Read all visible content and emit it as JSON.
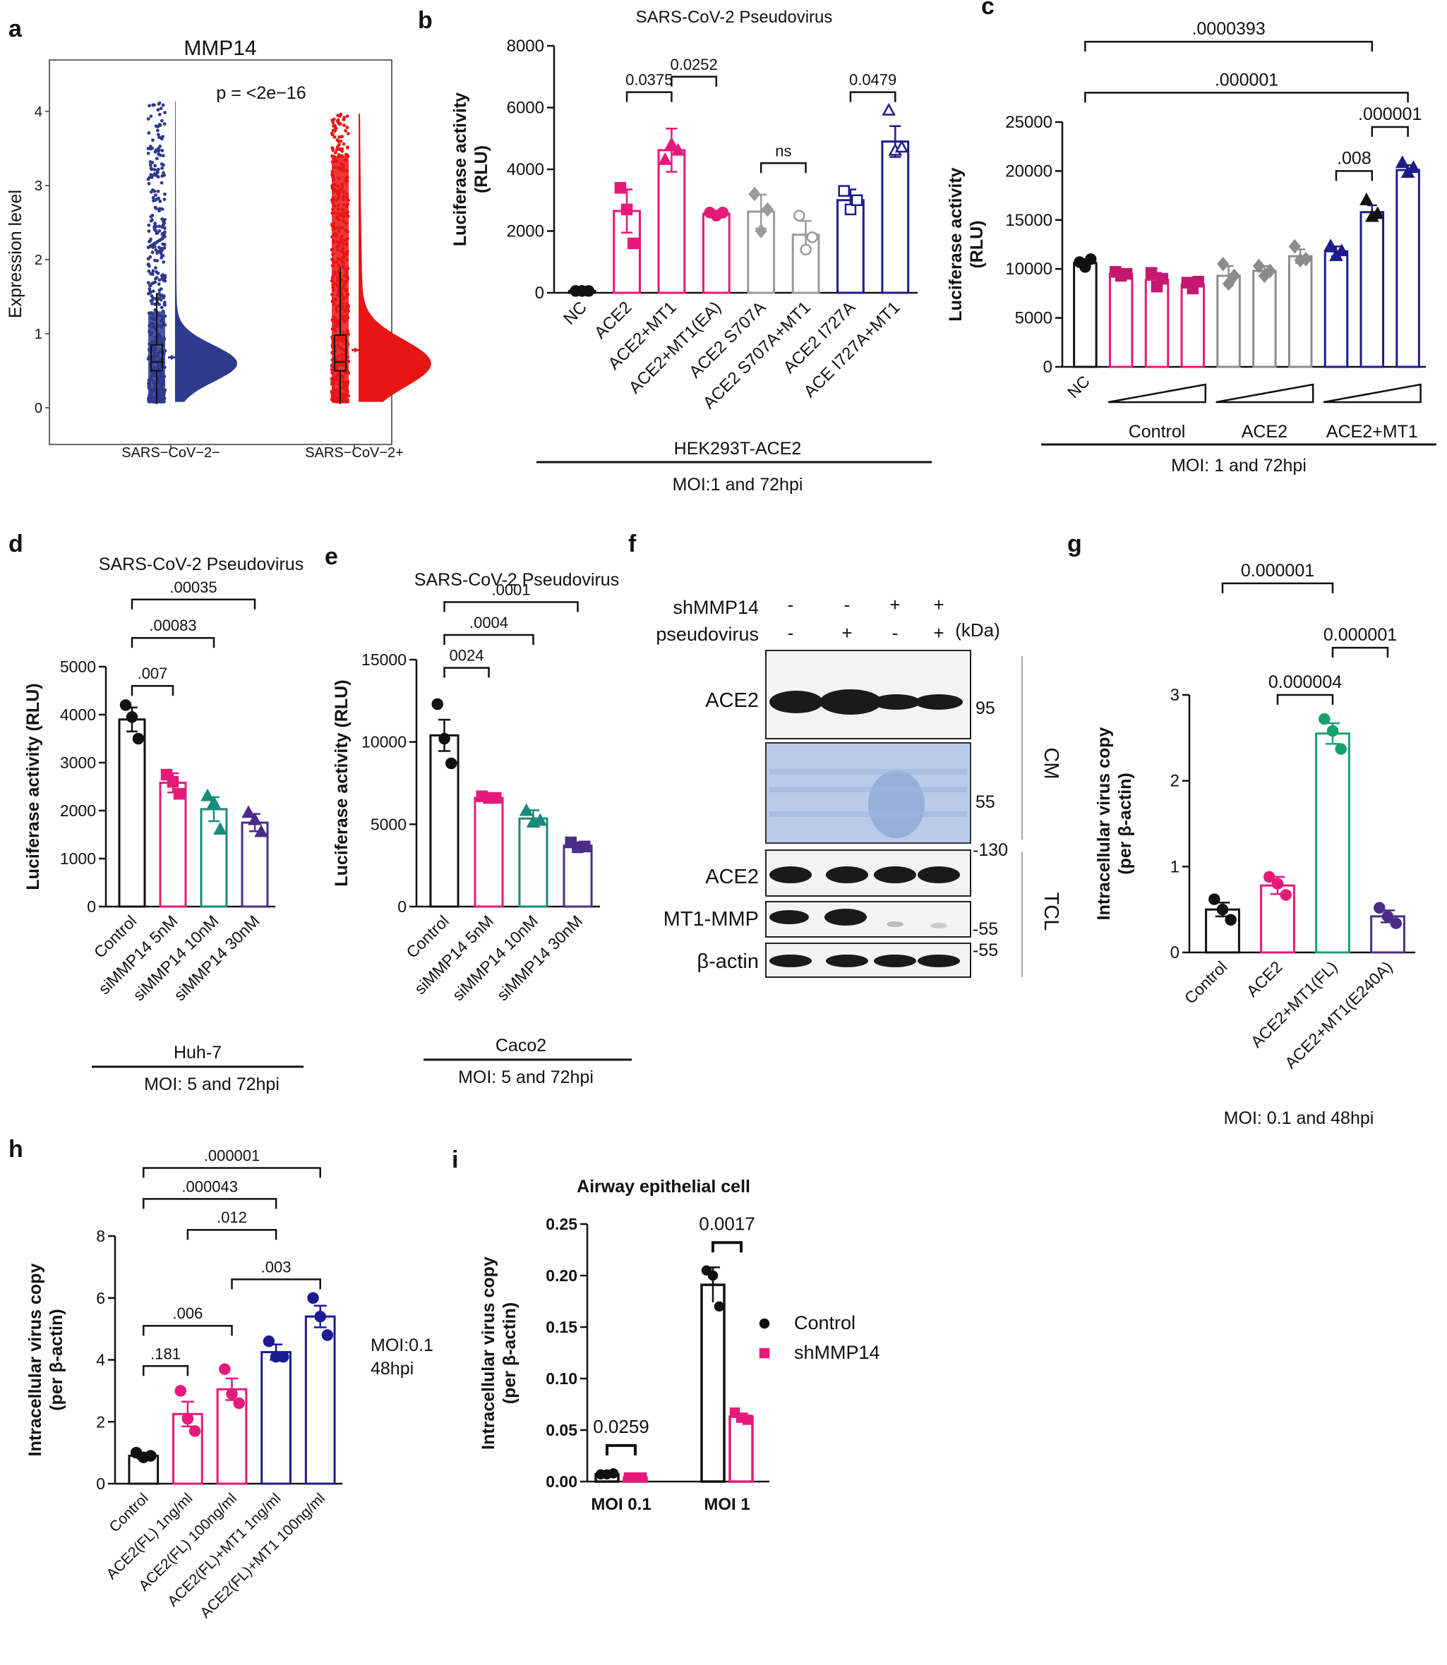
{
  "colors": {
    "black": "#111111",
    "pink": "#e6197a",
    "gray": "#9b9b9b",
    "navy": "#1c1c8e",
    "teal": "#1a8a7a",
    "purple": "#4b2d8a",
    "green": "#1aa06e",
    "blue_violin": "#2e3a8c",
    "red_violin": "#e81515"
  },
  "chart_data": [
    {
      "panel": "a",
      "type": "violin",
      "title": "MMP14",
      "annotation": "p = <2e−16",
      "ylabel": "Expression level",
      "ylim": [
        -0.05,
        4.3
      ],
      "yticks": [
        "0",
        "1",
        "2",
        "3",
        "4"
      ],
      "yticks_values": [
        0,
        1,
        2,
        3,
        4
      ],
      "categories": [
        "SARS−CoV−2−",
        "SARS−CoV−2+"
      ],
      "series_colors": [
        "#2e3a8c",
        "#e81515"
      ],
      "box": [
        {
          "whisker_low": 0.05,
          "q1": 0.5,
          "median": 0.62,
          "q3": 0.85,
          "whisker_high": 1.55,
          "mean": 0.68,
          "max": 4.15
        },
        {
          "whisker_low": 0.05,
          "q1": 0.5,
          "median": 0.62,
          "q3": 0.98,
          "whisker_high": 1.9,
          "mean": 0.78,
          "max": 3.98
        }
      ]
    },
    {
      "panel": "b",
      "type": "bar",
      "title": "SARS-CoV-2 Pseudovirus",
      "ylabel": "Luciferase activity (RLU)",
      "ylabel_lines": [
        "Luciferase activity",
        "(RLU)"
      ],
      "ylim": [
        0,
        8000
      ],
      "yticks": [
        "0",
        "2000",
        "4000",
        "6000",
        "8000"
      ],
      "yticks_values": [
        0,
        2000,
        4000,
        6000,
        8000
      ],
      "categories": [
        "NC",
        "ACE2",
        "ACE2+MT1",
        "ACE2+MT1(EA)",
        "ACE2 S707A",
        "ACE2 S707A+MT1",
        "ACE2 I727A",
        "ACE I727A+MT1"
      ],
      "values": [
        60,
        2650,
        4620,
        2560,
        2630,
        1880,
        3000,
        4900
      ],
      "errors": [
        30,
        700,
        700,
        100,
        550,
        450,
        350,
        500
      ],
      "points": [
        [
          60,
          60,
          60
        ],
        [
          3400,
          2700,
          1600
        ],
        [
          4300,
          4800,
          4600
        ],
        [
          2600,
          2500,
          2600
        ],
        [
          3200,
          2000,
          2700
        ],
        [
          2500,
          1400,
          1800
        ],
        [
          3300,
          2700,
          3000
        ],
        [
          5900,
          4600,
          4700
        ]
      ],
      "colors": [
        "#111111",
        "#e6197a",
        "#e6197a",
        "#e6197a",
        "#9b9b9b",
        "#9b9b9b",
        "#1c1c8e",
        "#1c1c8e"
      ],
      "markers": [
        "circle",
        "square",
        "triangle",
        "circle",
        "diamond",
        "circle",
        "square",
        "triangle"
      ],
      "filled": [
        true,
        true,
        true,
        true,
        true,
        false,
        false,
        false
      ],
      "comparisons": [
        {
          "a": 1,
          "b": 2,
          "label": "0.0375",
          "y": 6500
        },
        {
          "a": 2,
          "b": 3,
          "label": "0.0252",
          "y": 7000
        },
        {
          "a": 4,
          "b": 5,
          "label": "ns",
          "y": 4200
        },
        {
          "a": 6,
          "b": 7,
          "label": "0.0479",
          "y": 6500
        }
      ],
      "group_label": "HEK293T-ACE2",
      "footer": "MOI:1 and 72hpi"
    },
    {
      "panel": "c",
      "type": "bar",
      "ylabel": "Luciferase activity (RLU)",
      "ylabel_lines": [
        "Luciferase activity",
        "(RLU)"
      ],
      "ylim": [
        0,
        25000
      ],
      "yticks": [
        "0",
        "5000",
        "10000",
        "15000",
        "20000",
        "25000"
      ],
      "yticks_values": [
        0,
        5000,
        10000,
        15000,
        20000,
        25000
      ],
      "categories": [
        "NC",
        "",
        "",
        "",
        "",
        "",
        "",
        "",
        "",
        ""
      ],
      "values": [
        10600,
        9500,
        8900,
        8400,
        9300,
        9800,
        11300,
        11800,
        15800,
        20100
      ],
      "errors": [
        400,
        400,
        700,
        500,
        1000,
        500,
        700,
        500,
        700,
        500
      ],
      "points": [
        [
          10700,
          10200,
          11000
        ],
        [
          9700,
          9300,
          9500
        ],
        [
          9600,
          8200,
          9000
        ],
        [
          8600,
          8000,
          8700
        ],
        [
          10500,
          8500,
          9300
        ],
        [
          10300,
          9300,
          9800
        ],
        [
          12300,
          10900,
          11000
        ],
        [
          12300,
          11300,
          11800
        ],
        [
          17000,
          15300,
          15600
        ],
        [
          20800,
          19800,
          20300
        ]
      ],
      "colors": [
        "#111111",
        "#e6197a",
        "#e6197a",
        "#e6197a",
        "#8c8c8c",
        "#8c8c8c",
        "#8c8c8c",
        "#1c1c8e",
        "#1c1c8e",
        "#1c1c8e"
      ],
      "point_colors": [
        "#111111",
        "#c4186e",
        "#c4186e",
        "#c4186e",
        "#8c8c8c",
        "#8c8c8c",
        "#8c8c8c",
        "#1c1c8e",
        "#111111",
        "#1c1c8e"
      ],
      "markers": [
        "circle",
        "square",
        "square",
        "square",
        "diamond",
        "diamond",
        "diamond",
        "triangle",
        "triangle",
        "triangle"
      ],
      "filled": [
        true,
        true,
        true,
        true,
        true,
        true,
        true,
        true,
        true,
        true
      ],
      "comparisons": [
        {
          "a": 0,
          "b": 8,
          "label": ".0000393",
          "y": 33200
        },
        {
          "a": 0,
          "b": 9,
          "label": ".000001",
          "y": 28000
        },
        {
          "a": 8,
          "b": 9,
          "label": ".000001",
          "y": 24500
        },
        {
          "a": 7,
          "b": 8,
          "label": ".008",
          "y": 20000
        }
      ],
      "group_labels": [
        "Control",
        "ACE2",
        "ACE2+MT1"
      ],
      "footer": "MOI: 1 and 72hpi"
    },
    {
      "panel": "d",
      "type": "bar",
      "title": "SARS-CoV-2 Pseudovirus",
      "ylabel": "Luciferase activity (RLU)",
      "ylim": [
        0,
        5000
      ],
      "yticks": [
        "0",
        "1000",
        "2000",
        "3000",
        "4000",
        "5000"
      ],
      "yticks_values": [
        0,
        1000,
        2000,
        3000,
        4000,
        5000
      ],
      "categories": [
        "Control",
        "siMMP14 5nM",
        "siMMP14 10nM",
        "siMMP14 30nM"
      ],
      "values": [
        3900,
        2580,
        2030,
        1750
      ],
      "errors": [
        250,
        200,
        250,
        180
      ],
      "points": [
        [
          4200,
          3950,
          3500
        ],
        [
          2750,
          2600,
          2350
        ],
        [
          2300,
          2150,
          1600
        ],
        [
          1950,
          1800,
          1550
        ]
      ],
      "colors": [
        "#111111",
        "#e6197a",
        "#1a8a7a",
        "#4b2d8a"
      ],
      "markers": [
        "circle",
        "square",
        "triangle",
        "triangle"
      ],
      "filled": [
        true,
        true,
        true,
        true
      ],
      "comparisons": [
        {
          "a": 0,
          "b": 1,
          "label": ".007",
          "y": 4600
        },
        {
          "a": 0,
          "b": 2,
          "label": ".00083",
          "y": 5600
        },
        {
          "a": 0,
          "b": 3,
          "label": ".00035",
          "y": 6400
        }
      ],
      "group_label": "Huh-7",
      "footer": "MOI:   5 and 72hpi"
    },
    {
      "panel": "e",
      "type": "bar",
      "title": "SARS-CoV-2 Pseudovirus",
      "ylabel": "Luciferase activity (RLU)",
      "ylim": [
        0,
        15000
      ],
      "yticks": [
        "0",
        "5000",
        "10000",
        "15000"
      ],
      "yticks_values": [
        0,
        5000,
        10000,
        15000
      ],
      "categories": [
        "Control",
        "siMMP14 5nM",
        "siMMP14 10nM",
        "siMMP14 30nM"
      ],
      "values": [
        10400,
        6600,
        5350,
        3700
      ],
      "errors": [
        950,
        150,
        500,
        200
      ],
      "points": [
        [
          12300,
          10200,
          8700
        ],
        [
          6700,
          6600,
          6600
        ],
        [
          5800,
          5100,
          5200
        ],
        [
          3900,
          3600,
          3650
        ]
      ],
      "colors": [
        "#111111",
        "#e6197a",
        "#1a8a7a",
        "#4b2d8a"
      ],
      "markers": [
        "circle",
        "square",
        "triangle",
        "square"
      ],
      "filled": [
        true,
        true,
        true,
        true
      ],
      "comparisons": [
        {
          "a": 0,
          "b": 1,
          "label": "0024",
          "y": 14500
        },
        {
          "a": 0,
          "b": 2,
          "label": ".0004",
          "y": 16500
        },
        {
          "a": 0,
          "b": 3,
          "label": ".0001",
          "y": 18500
        }
      ],
      "group_label": "Caco2",
      "footer": "MOI: 5 and 72hpi"
    },
    {
      "panel": "g",
      "type": "bar",
      "ylabel": "Intracellular virus copy (per β-actin)",
      "ylabel_lines": [
        "Intracellular virus copy",
        "(per β-actin)"
      ],
      "ylim": [
        0,
        3
      ],
      "yticks": [
        "0",
        "1",
        "2",
        "3"
      ],
      "yticks_values": [
        0,
        1,
        2,
        3
      ],
      "categories": [
        "Control",
        "ACE2",
        "ACE2+MT1(FL)",
        "ACE2+MT1(E240A)"
      ],
      "values": [
        0.5,
        0.78,
        2.55,
        0.42
      ],
      "errors": [
        0.08,
        0.1,
        0.12,
        0.07
      ],
      "points": [
        [
          0.62,
          0.5,
          0.38
        ],
        [
          0.88,
          0.8,
          0.67
        ],
        [
          2.72,
          2.58,
          2.37
        ],
        [
          0.52,
          0.42,
          0.34
        ]
      ],
      "colors": [
        "#111111",
        "#e6197a",
        "#1aa06e",
        "#4b2d8a"
      ],
      "markers": [
        "circle",
        "circle",
        "circle",
        "circle"
      ],
      "filled": [
        true,
        true,
        true,
        true
      ],
      "comparisons": [
        {
          "a": 0,
          "b": 2,
          "label": "0.000001",
          "y": 4.3
        },
        {
          "a": 2,
          "b": 3,
          "label": "0.000001",
          "y": 3.55
        },
        {
          "a": 1,
          "b": 2,
          "label": "0.000004",
          "y": 3.0
        }
      ],
      "footer": "MOI: 0.1 and 48hpi"
    },
    {
      "panel": "h",
      "type": "bar",
      "ylabel": "Intracellular virus copy (per β-actin)",
      "ylabel_lines": [
        "Intracellular virus copy",
        "(per β-actin)"
      ],
      "ylim": [
        0,
        8
      ],
      "yticks": [
        "0",
        "2",
        "4",
        "6",
        "8"
      ],
      "yticks_values": [
        0,
        2,
        4,
        6,
        8
      ],
      "categories": [
        "Control",
        "ACE2(FL) 1ng/ml",
        "ACE2(FL) 100ng/ml",
        "ACE2(FL)+MT1 1ng/ml",
        "ACE2(FL)+MT1 100ng/ml"
      ],
      "values": [
        0.9,
        2.25,
        3.05,
        4.25,
        5.4
      ],
      "errors": [
        0.1,
        0.4,
        0.35,
        0.25,
        0.35
      ],
      "points": [
        [
          1.0,
          0.85,
          0.9
        ],
        [
          3.0,
          2.1,
          1.7
        ],
        [
          3.7,
          2.9,
          2.6
        ],
        [
          4.6,
          4.1,
          4.1
        ],
        [
          6.0,
          5.4,
          4.8
        ]
      ],
      "colors": [
        "#111111",
        "#e6197a",
        "#e6197a",
        "#1c1c8e",
        "#1c1c8e"
      ],
      "markers": [
        "circle",
        "circle",
        "circle",
        "circle",
        "circle"
      ],
      "filled": [
        true,
        true,
        true,
        true,
        true
      ],
      "comparisons": [
        {
          "a": 0,
          "b": 4,
          "label": ".000001",
          "y": 10.2
        },
        {
          "a": 0,
          "b": 3,
          "label": ".000043",
          "y": 9.2
        },
        {
          "a": 1,
          "b": 3,
          "label": ".012",
          "y": 8.2
        },
        {
          "a": 2,
          "b": 4,
          "label": ".003",
          "y": 6.6
        },
        {
          "a": 0,
          "b": 2,
          "label": ".006",
          "y": 5.1
        },
        {
          "a": 0,
          "b": 1,
          "label": ".181",
          "y": 3.8
        }
      ],
      "side_note": [
        "MOI:0.1",
        "48hpi"
      ]
    },
    {
      "panel": "i",
      "type": "bar",
      "title": "Airway epithelial cell",
      "ylabel": "Intracellular virus copy (per β-actin)",
      "ylabel_lines": [
        "Intracellular virus copy",
        "(per β-actin)"
      ],
      "ylim": [
        0,
        0.25
      ],
      "yticks": [
        "0.00",
        "0.05",
        "0.10",
        "0.15",
        "0.20",
        "0.25"
      ],
      "yticks_values": [
        0,
        0.05,
        0.1,
        0.15,
        0.2,
        0.25
      ],
      "categories": [
        "MOI 0.1",
        "MOI 1"
      ],
      "series": [
        {
          "name": "Control",
          "values": [
            0.007,
            0.191
          ],
          "errors": [
            0.001,
            0.017
          ],
          "points": [
            [
              0.007,
              0.007,
              0.008
            ],
            [
              0.205,
              0.2,
              0.17
            ]
          ]
        },
        {
          "name": "shMMP14",
          "values": [
            0.004,
            0.063
          ],
          "errors": [
            0.001,
            0.003
          ],
          "points": [
            [
              0.004,
              0.004,
              0.004
            ],
            [
              0.067,
              0.062,
              0.06
            ]
          ]
        }
      ],
      "series_colors": [
        "#111111",
        "#e6197a"
      ],
      "comparisons": [
        {
          "group": 0,
          "label": "0.0259",
          "y": 0.035
        },
        {
          "group": 1,
          "label": "0.0017",
          "y": 0.232
        }
      ]
    }
  ],
  "panel_letters": [
    "a",
    "b",
    "c",
    "d",
    "e",
    "f",
    "g",
    "h",
    "i"
  ],
  "blot": {
    "row_labels": [
      "shMMP14",
      "pseudovirus"
    ],
    "shMMP14": [
      "-",
      "-",
      "+",
      "+"
    ],
    "pseudovirus": [
      "-",
      "+",
      "-",
      "+"
    ],
    "unit": "(kDa)",
    "markers": [
      "95",
      "55",
      "-130",
      "-55",
      "-55"
    ],
    "bands": [
      "ACE2",
      "ACE2",
      "MT1-MMP",
      "β-actin"
    ],
    "sections": [
      "CM",
      "TCL"
    ]
  }
}
